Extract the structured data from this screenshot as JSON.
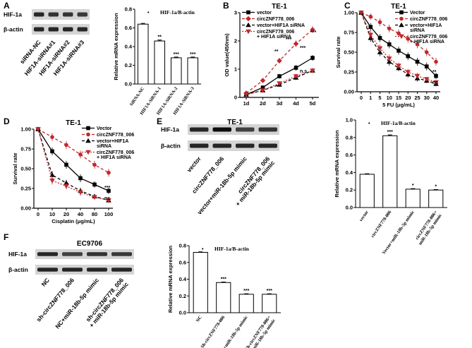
{
  "figure": {
    "panels": {
      "A": {
        "label": "A",
        "blot_rows": [
          "HIF-1a",
          "β-actin"
        ],
        "lanes": [
          "siRNA-NC",
          "HIF1A-siRNA#1",
          "HIF1A-siRNA#2",
          "HIF1A-siRNA#3"
        ],
        "bar_bullet": "•",
        "sig_marks": [
          "",
          "**",
          "***",
          "***"
        ]
      },
      "B": {
        "label": "B",
        "sig_marks": [
          "**",
          "***",
          "***",
          "***",
          "n.s"
        ]
      },
      "C": {
        "label": "C",
        "sig_marks": [
          "**",
          "ns"
        ]
      },
      "D": {
        "label": "D",
        "sig_marks": [
          "***",
          "ns"
        ]
      },
      "E": {
        "label": "E",
        "blot_title": "TE-1",
        "blot_rows": [
          "HIF-1a",
          "β-actin"
        ],
        "lanes": [
          "vector",
          "circZNF778_006",
          "vector+miR-18b-5p mimic",
          "circZNF778_006\n+ miR-18b-5p mimic"
        ],
        "bar_bullet": "•",
        "sig_marks": [
          "",
          "***",
          "*",
          "*"
        ]
      },
      "F": {
        "label": "F",
        "blot_title": "EC9706",
        "blot_rows": [
          "HIF-1a",
          "β-actin"
        ],
        "lanes": [
          "NC",
          "sh-circZNF778_006",
          "NC+miR-18b-5p mimic",
          "sh-circZNF778_006\n+ miR-18b-5p mimic"
        ],
        "bar_bullet": "•",
        "sig_marks": [
          "",
          "***",
          "***",
          "***"
        ]
      }
    }
  },
  "chart_data": [
    {
      "id": "A-bar",
      "type": "bar",
      "title": "HIF-1a/B-actin",
      "ylabel": "Relative mRNA expression",
      "categories": [
        "SiRNA-NC",
        "HIF1A-SiRNA-1",
        "HIF1A-SiRNA-2",
        "HIF1A-SiRNA-3"
      ],
      "values": [
        0.64,
        0.46,
        0.28,
        0.28
      ],
      "errors": [
        0.008,
        0.01,
        0.008,
        0.008
      ],
      "ylim": [
        0,
        0.8
      ],
      "yticks": [
        "0.0",
        "0.2",
        "0.4",
        "0.6",
        "0.8"
      ]
    },
    {
      "id": "B-line",
      "type": "line",
      "title": "TE-1",
      "xlabel": "",
      "ylabel": "OD value(450nm)",
      "x": [
        "1d",
        "2d",
        "3d",
        "4d",
        "5d"
      ],
      "ylim": [
        0,
        3
      ],
      "yticks": [
        "0",
        "1",
        "2",
        "3"
      ],
      "series": [
        {
          "name": "vector",
          "values": [
            0.1,
            0.35,
            0.75,
            1.05,
            1.4
          ],
          "errors": [
            0.03,
            0.05,
            0.08,
            0.1,
            0.1
          ],
          "color": "#000000",
          "dash": "",
          "marker": "square"
        },
        {
          "name": "circZNF778_006",
          "values": [
            0.15,
            0.6,
            1.3,
            1.9,
            2.4
          ],
          "errors": [
            0.03,
            0.06,
            0.1,
            0.12,
            0.12
          ],
          "color": "#c0282d",
          "dash": "4,3",
          "marker": "diamond"
        },
        {
          "name": "vector+HIF1A siRNA",
          "values": [
            0.1,
            0.25,
            0.45,
            0.7,
            0.95
          ],
          "errors": [
            0.03,
            0.04,
            0.06,
            0.08,
            0.08
          ],
          "color": "#000000",
          "dash": "4,3",
          "marker": "triangle"
        },
        {
          "name": "circZNF778_006\n+ HIF1A siRNA",
          "values": [
            0.1,
            0.25,
            0.5,
            0.75,
            0.95
          ],
          "errors": [
            0.03,
            0.04,
            0.06,
            0.08,
            0.08
          ],
          "color": "#c0282d",
          "dash": "2,2",
          "marker": "invtriangle"
        }
      ]
    },
    {
      "id": "C-line",
      "type": "line",
      "title": "TE-1",
      "xlabel": "5 FU (μg/mL)",
      "ylabel": "Survival rate",
      "x": [
        "0",
        "1",
        "5",
        "10",
        "15",
        "20",
        "25",
        "30",
        "40"
      ],
      "ylim": [
        0,
        1.0
      ],
      "yticks": [
        "0.00",
        "0.25",
        "0.50",
        "0.75",
        "1.00"
      ],
      "series": [
        {
          "name": "Vector",
          "values": [
            1.0,
            0.82,
            0.68,
            0.6,
            0.52,
            0.45,
            0.38,
            0.32,
            0.2
          ],
          "errors": [
            0.02,
            0.05,
            0.05,
            0.05,
            0.05,
            0.05,
            0.05,
            0.05,
            0.04
          ],
          "color": "#000000",
          "dash": "",
          "marker": "square"
        },
        {
          "name": "circZNF778_006",
          "values": [
            1.0,
            0.95,
            0.88,
            0.8,
            0.74,
            0.67,
            0.6,
            0.5,
            0.38
          ],
          "errors": [
            0.02,
            0.04,
            0.05,
            0.05,
            0.05,
            0.05,
            0.05,
            0.05,
            0.05
          ],
          "color": "#c0282d",
          "dash": "4,3",
          "marker": "circle"
        },
        {
          "name": "vector+HIF1A\nsiRNA",
          "values": [
            1.0,
            0.68,
            0.5,
            0.38,
            0.3,
            0.22,
            0.17,
            0.14,
            0.1
          ],
          "errors": [
            0.02,
            0.05,
            0.05,
            0.05,
            0.04,
            0.04,
            0.04,
            0.03,
            0.03
          ],
          "color": "#000000",
          "dash": "4,3",
          "marker": "triangle"
        },
        {
          "name": "circZNF778_006\n+ HIF1A siRNA",
          "values": [
            1.0,
            0.72,
            0.55,
            0.42,
            0.33,
            0.25,
            0.2,
            0.16,
            0.12
          ],
          "errors": [
            0.02,
            0.05,
            0.05,
            0.05,
            0.04,
            0.04,
            0.04,
            0.03,
            0.03
          ],
          "color": "#c0282d",
          "dash": "2,2",
          "marker": "invtriangle"
        }
      ]
    },
    {
      "id": "D-line",
      "type": "line",
      "title": "TE-1",
      "xlabel": "Cisplatin (μg/mL)",
      "ylabel": "Survival rate",
      "x": [
        "0",
        "10",
        "20",
        "40",
        "80",
        "100"
      ],
      "ylim": [
        0,
        1.0
      ],
      "yticks": [
        "0.00",
        "0.25",
        "0.50",
        "0.75",
        "1.00"
      ],
      "series": [
        {
          "name": "Vector",
          "values": [
            1.0,
            0.72,
            0.55,
            0.38,
            0.3,
            0.22
          ],
          "errors": [
            0.02,
            0.05,
            0.05,
            0.05,
            0.04,
            0.04
          ],
          "color": "#000000",
          "dash": "",
          "marker": "square"
        },
        {
          "name": "circZNF778_006",
          "values": [
            1.0,
            0.9,
            0.8,
            0.68,
            0.55,
            0.45
          ],
          "errors": [
            0.02,
            0.05,
            0.05,
            0.05,
            0.05,
            0.05
          ],
          "color": "#c0282d",
          "dash": "4,3",
          "marker": "circle"
        },
        {
          "name": "vector+HIF1A\nsiRNA",
          "values": [
            1.0,
            0.42,
            0.32,
            0.22,
            0.15,
            0.1
          ],
          "errors": [
            0.02,
            0.05,
            0.04,
            0.04,
            0.03,
            0.03
          ],
          "color": "#000000",
          "dash": "4,3",
          "marker": "triangle"
        },
        {
          "name": "circZNF778_006\n+ HIF1A siRNA",
          "values": [
            1.0,
            0.35,
            0.28,
            0.2,
            0.14,
            0.1
          ],
          "errors": [
            0.02,
            0.05,
            0.04,
            0.04,
            0.03,
            0.03
          ],
          "color": "#c0282d",
          "dash": "2,2",
          "marker": "invtriangle"
        }
      ]
    },
    {
      "id": "E-bar",
      "type": "bar",
      "title": "HIF-1a/B-actin",
      "ylabel": "Relative mRNA expression",
      "categories": [
        "vector",
        "circZNF778-006",
        "Vector+miR-18b-5p mimic",
        "circZNF778-006+\nmiR-18b-5p mimic"
      ],
      "values": [
        0.38,
        0.82,
        0.21,
        0.2
      ],
      "errors": [
        0.006,
        0.01,
        0.006,
        0.006
      ],
      "ylim": [
        0,
        1.0
      ],
      "yticks": [
        "0.0",
        "0.2",
        "0.4",
        "0.6",
        "0.8",
        "1.0"
      ]
    },
    {
      "id": "F-bar",
      "type": "bar",
      "title": "HIF-1a/B-actin",
      "ylabel": "Relative mRNA expression",
      "categories": [
        "NC",
        "Sh-circZNF778-006",
        "NC+miR-18b-5p mimic",
        "Sh-circZNF778-006+\nmiR-18b-5p mimic"
      ],
      "values": [
        0.72,
        0.36,
        0.22,
        0.22
      ],
      "errors": [
        0.006,
        0.006,
        0.006,
        0.006
      ],
      "ylim": [
        0,
        0.8
      ],
      "yticks": [
        "0.0",
        "0.2",
        "0.4",
        "0.6",
        "0.8"
      ]
    }
  ]
}
